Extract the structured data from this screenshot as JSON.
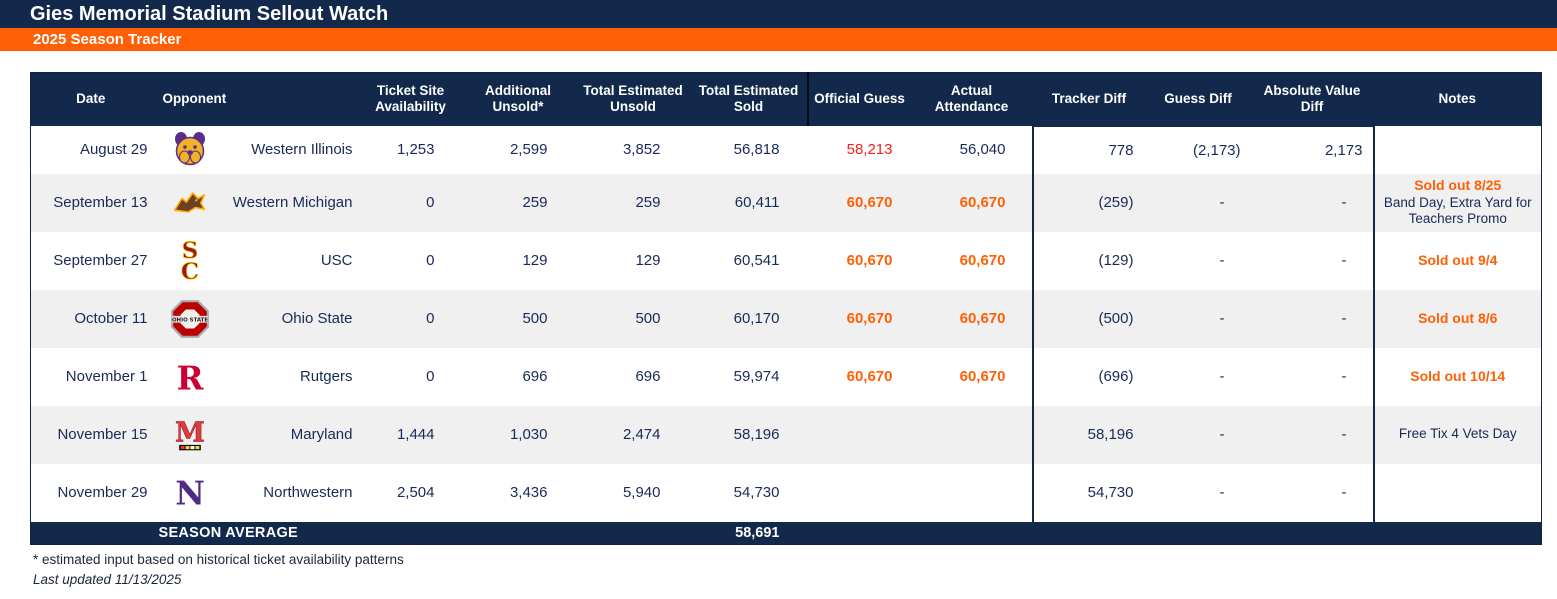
{
  "header_bar": {
    "title": "Gies Memorial Stadium Sellout Watch"
  },
  "subheader_bar": {
    "title": "2025 Season Tracker"
  },
  "colors": {
    "navy": "#13294B",
    "orange": "#FF5F05",
    "red_alert": "#F51D1D",
    "row_alt": "#F0F0F0",
    "cell_text": "#182A57"
  },
  "table": {
    "columns": [
      "Date",
      "Opponent",
      "Ticket Site Availability",
      "Additional Unsold*",
      "Total Estimated Unsold",
      "Total Estimated Sold",
      "Official Guess",
      "Actual Attendance",
      "Tracker Diff",
      "Guess Diff",
      "Absolute Value Diff",
      "Notes"
    ],
    "rows": [
      {
        "date": "August 29",
        "opponent": "Western Illinois",
        "logo": "western-illinois-bulldog-logo",
        "ticket_site_availability": "1,253",
        "additional_unsold": "2,599",
        "total_estimated_unsold": "3,852",
        "total_estimated_sold": "56,818",
        "official_guess": "58,213",
        "official_guess_style": "red",
        "actual_attendance": "56,040",
        "actual_attendance_style": "",
        "tracker_diff": "778",
        "guess_diff": "(2,173)",
        "absolute_value_diff": "2,173",
        "note_strong": "",
        "note_lines": []
      },
      {
        "date": "September 13",
        "opponent": "Western Michigan",
        "logo": "western-michigan-bronco-logo",
        "ticket_site_availability": "0",
        "additional_unsold": "259",
        "total_estimated_unsold": "259",
        "total_estimated_sold": "60,411",
        "official_guess": "60,670",
        "official_guess_style": "orange",
        "actual_attendance": "60,670",
        "actual_attendance_style": "orange",
        "tracker_diff": "(259)",
        "guess_diff": "-",
        "absolute_value_diff": "-",
        "note_strong": "Sold out 8/25",
        "note_lines": [
          "Band Day, Extra Yard for Teachers Promo"
        ]
      },
      {
        "date": "September 27",
        "opponent": "USC",
        "logo": "usc-interlock-sc-logo",
        "ticket_site_availability": "0",
        "additional_unsold": "129",
        "total_estimated_unsold": "129",
        "total_estimated_sold": "60,541",
        "official_guess": "60,670",
        "official_guess_style": "orange",
        "actual_attendance": "60,670",
        "actual_attendance_style": "orange",
        "tracker_diff": "(129)",
        "guess_diff": "-",
        "absolute_value_diff": "-",
        "note_strong": "Sold out 9/4",
        "note_lines": []
      },
      {
        "date": "October 11",
        "opponent": "Ohio State",
        "logo": "ohio-state-block-o-logo",
        "ticket_site_availability": "0",
        "additional_unsold": "500",
        "total_estimated_unsold": "500",
        "total_estimated_sold": "60,170",
        "official_guess": "60,670",
        "official_guess_style": "orange",
        "actual_attendance": "60,670",
        "actual_attendance_style": "orange",
        "tracker_diff": "(500)",
        "guess_diff": "-",
        "absolute_value_diff": "-",
        "note_strong": "Sold out 8/6",
        "note_lines": []
      },
      {
        "date": "November 1",
        "opponent": "Rutgers",
        "logo": "rutgers-block-r-logo",
        "ticket_site_availability": "0",
        "additional_unsold": "696",
        "total_estimated_unsold": "696",
        "total_estimated_sold": "59,974",
        "official_guess": "60,670",
        "official_guess_style": "orange",
        "actual_attendance": "60,670",
        "actual_attendance_style": "orange",
        "tracker_diff": "(696)",
        "guess_diff": "-",
        "absolute_value_diff": "-",
        "note_strong": "Sold out 10/14",
        "note_lines": []
      },
      {
        "date": "November 15",
        "opponent": "Maryland",
        "logo": "maryland-m-logo",
        "ticket_site_availability": "1,444",
        "additional_unsold": "1,030",
        "total_estimated_unsold": "2,474",
        "total_estimated_sold": "58,196",
        "official_guess": "",
        "official_guess_style": "",
        "actual_attendance": "",
        "actual_attendance_style": "",
        "tracker_diff": "58,196",
        "guess_diff": "-",
        "absolute_value_diff": "-",
        "note_strong": "",
        "note_lines": [
          "Free Tix 4 Vets Day"
        ]
      },
      {
        "date": "November 29",
        "opponent": "Northwestern",
        "logo": "northwestern-n-logo",
        "ticket_site_availability": "2,504",
        "additional_unsold": "3,436",
        "total_estimated_unsold": "5,940",
        "total_estimated_sold": "54,730",
        "official_guess": "",
        "official_guess_style": "",
        "actual_attendance": "",
        "actual_attendance_style": "",
        "tracker_diff": "54,730",
        "guess_diff": "-",
        "absolute_value_diff": "-",
        "note_strong": "",
        "note_lines": []
      }
    ],
    "season_average": {
      "label": "SEASON AVERAGE",
      "total_estimated_sold": "58,691"
    }
  },
  "footnotes": {
    "asterisk": "* estimated input based on historical ticket availability patterns",
    "last_updated": "Last updated 11/13/2025"
  },
  "logo_colors": {
    "western-illinois-bulldog-logo": [
      "#5E2B8A",
      "#F0B323"
    ],
    "western-michigan-bronco-logo": [
      "#6C4023",
      "#FFAE00"
    ],
    "usc-interlock-sc-logo": [
      "#991B1E",
      "#FFCC00"
    ],
    "ohio-state-block-o-logo": [
      "#BB0000",
      "#A7A9AC",
      "#231F20"
    ],
    "rutgers-block-r-logo": [
      "#CC0033"
    ],
    "maryland-m-logo": [
      "#E03A3E",
      "#FFD520",
      "#000000"
    ],
    "northwestern-n-logo": [
      "#4E2A84"
    ]
  }
}
